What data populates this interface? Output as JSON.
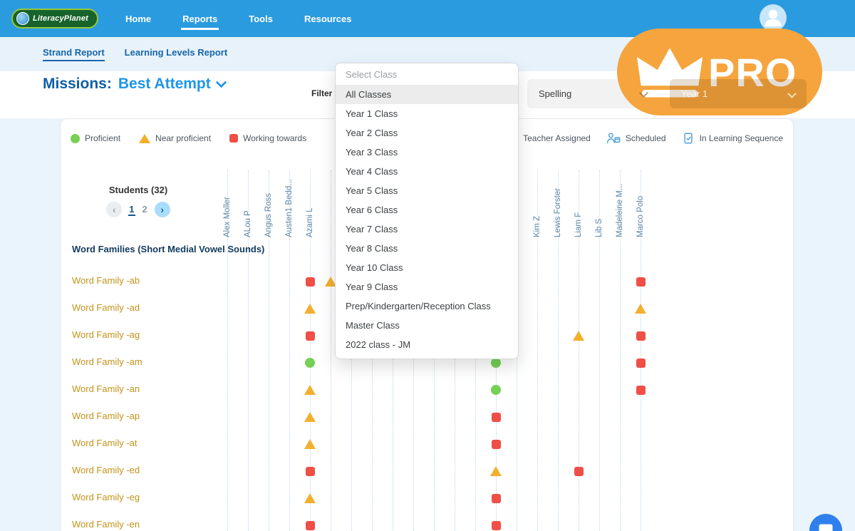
{
  "header": {
    "logo": "LiteracyPlanet",
    "nav": [
      {
        "label": "Home",
        "active": false
      },
      {
        "label": "Reports",
        "active": true
      },
      {
        "label": "Tools",
        "active": false
      },
      {
        "label": "Resources",
        "active": false
      }
    ]
  },
  "subnav": {
    "items": [
      {
        "label": "Strand Report",
        "active": true
      },
      {
        "label": "Learning Levels Report",
        "active": false
      }
    ]
  },
  "pro_badge": {
    "label": "PRO"
  },
  "toolbar": {
    "title_prefix": "Missions:",
    "title_value": "Best Attempt",
    "filter_label": "Filter by",
    "subject_dropdown": {
      "value": "Spelling"
    },
    "year_dropdown": {
      "value": "Year 1"
    }
  },
  "class_dropdown": {
    "placeholder": "Select Class",
    "highlighted": "All Classes",
    "options": [
      "All Classes",
      "Year 1 Class",
      "Year 2 Class",
      "Year 3 Class",
      "Year 4 Class",
      "Year 5 Class",
      "Year 6 Class",
      "Year 7 Class",
      "Year 8 Class",
      "Year 10 Class",
      "Year 9 Class",
      "Prep/Kindergarten/Reception Class",
      "Master Class",
      "2022 class - JM"
    ]
  },
  "legend": {
    "items": [
      {
        "label": "Proficient",
        "shape": "circle",
        "color": "#75D154"
      },
      {
        "label": "Near proficient",
        "shape": "triangle",
        "color": "#F2B02E"
      },
      {
        "label": "Working towards",
        "shape": "square",
        "color": "#EF4F46"
      }
    ],
    "flags": [
      {
        "label": "Teacher Assigned",
        "icon": "teacher-assigned-icon"
      },
      {
        "label": "Scheduled",
        "icon": "scheduled-icon"
      },
      {
        "label": "In Learning Sequence",
        "icon": "learning-sequence-icon"
      }
    ]
  },
  "grid": {
    "students_label": "Students (32)",
    "pagination": {
      "pages": [
        "1",
        "2"
      ],
      "current": "1"
    },
    "columns": [
      "Alex Moller",
      "ALou P",
      "Angus Ross",
      "Austen1 Bedd...",
      "Azami L",
      "",
      "",
      "",
      "",
      "",
      "",
      "",
      "",
      "",
      "",
      "Kim Z",
      "Lewis Forster",
      "Liam F",
      "Lib S",
      "Madeleine M...",
      "Marco Polo"
    ],
    "section_title": "Word Families (Short Medial Vowel Sounds)",
    "rows": [
      {
        "label": "Word Family -ab",
        "markers": [
          {
            "col": 4,
            "type": "working"
          },
          {
            "col": 5,
            "type": "near"
          },
          {
            "col": 20,
            "type": "working"
          }
        ]
      },
      {
        "label": "Word Family -ad",
        "markers": [
          {
            "col": 4,
            "type": "near"
          },
          {
            "col": 20,
            "type": "near"
          }
        ]
      },
      {
        "label": "Word Family -ag",
        "markers": [
          {
            "col": 4,
            "type": "working"
          },
          {
            "col": 17,
            "type": "near"
          },
          {
            "col": 20,
            "type": "working"
          }
        ]
      },
      {
        "label": "Word Family -am",
        "markers": [
          {
            "col": 4,
            "type": "proficient"
          },
          {
            "col": 13,
            "type": "proficient"
          },
          {
            "col": 20,
            "type": "working"
          }
        ]
      },
      {
        "label": "Word Family -an",
        "markers": [
          {
            "col": 4,
            "type": "near"
          },
          {
            "col": 13,
            "type": "proficient"
          },
          {
            "col": 20,
            "type": "working"
          }
        ]
      },
      {
        "label": "Word Family -ap",
        "markers": [
          {
            "col": 4,
            "type": "near"
          },
          {
            "col": 13,
            "type": "working"
          }
        ]
      },
      {
        "label": "Word Family -at",
        "markers": [
          {
            "col": 4,
            "type": "near"
          },
          {
            "col": 13,
            "type": "working"
          }
        ]
      },
      {
        "label": "Word Family -ed",
        "markers": [
          {
            "col": 4,
            "type": "working"
          },
          {
            "col": 13,
            "type": "near"
          },
          {
            "col": 17,
            "type": "working"
          }
        ]
      },
      {
        "label": "Word Family -eg",
        "markers": [
          {
            "col": 4,
            "type": "near"
          },
          {
            "col": 13,
            "type": "working"
          }
        ]
      },
      {
        "label": "Word Family -en",
        "markers": [
          {
            "col": 4,
            "type": "working"
          },
          {
            "col": 13,
            "type": "working"
          }
        ]
      }
    ]
  },
  "colors": {
    "proficient": "#75D154",
    "near": "#F2B02E",
    "working": "#EF4F46",
    "topbar_blue": "#2B9BDF",
    "accent_blue": "#1F96E8",
    "badge_orange": "#F6A43D"
  },
  "icons": [
    "literacyplanet-logo",
    "user-avatar-icon",
    "crown-icon",
    "chevron-down-icon",
    "prev-arrow-icon",
    "next-arrow-icon",
    "teacher-assigned-icon",
    "scheduled-icon",
    "learning-sequence-icon",
    "chat-icon",
    "proficient-marker-icon",
    "near-proficient-marker-icon",
    "working-towards-marker-icon"
  ]
}
